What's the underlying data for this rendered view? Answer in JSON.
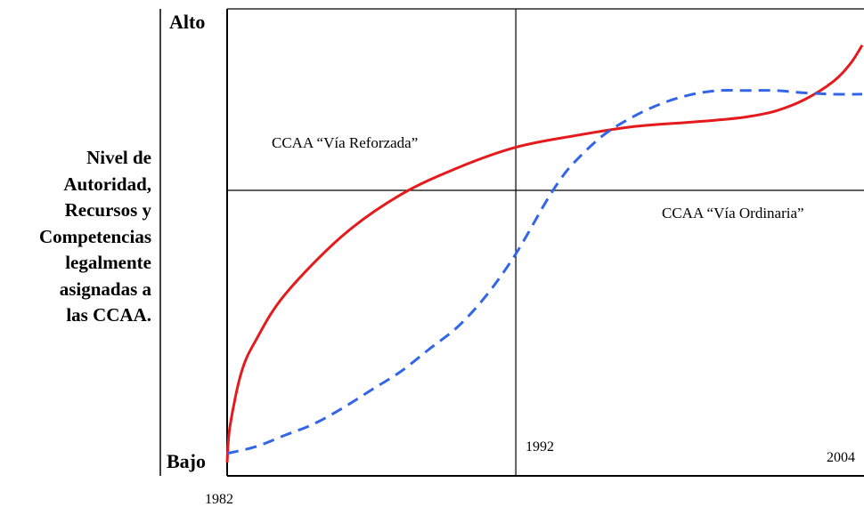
{
  "chart_data": {
    "type": "line",
    "ylabel_lines": [
      "Nivel de",
      "Autoridad,",
      "Recursos y",
      "Competencias",
      "legalmente",
      "asignadas a",
      "las CCAA."
    ],
    "y_ticks": {
      "top": "Alto",
      "bottom": "Bajo"
    },
    "x_ticks": {
      "start": "1982",
      "middle": "1992",
      "end": "2004"
    },
    "x_range": [
      1982,
      2004
    ],
    "y_range": [
      0,
      1
    ],
    "reference_lines": {
      "x": 1992,
      "y": 0.6
    },
    "series": [
      {
        "name": "CCAA “Vía Reforzada”",
        "color": "#e41a1c",
        "style": "solid",
        "points": [
          [
            1982.0,
            0.0
          ],
          [
            1982.1,
            0.08
          ],
          [
            1982.5,
            0.2
          ],
          [
            1983.0,
            0.27
          ],
          [
            1984.0,
            0.37
          ],
          [
            1986.0,
            0.5
          ],
          [
            1988.0,
            0.59
          ],
          [
            1990.0,
            0.65
          ],
          [
            1992.0,
            0.695
          ],
          [
            1994.0,
            0.72
          ],
          [
            1996.0,
            0.74
          ],
          [
            1998.0,
            0.75
          ],
          [
            1999.0,
            0.755
          ],
          [
            2000.0,
            0.762
          ],
          [
            2001.0,
            0.775
          ],
          [
            2002.0,
            0.8
          ],
          [
            2003.0,
            0.84
          ],
          [
            2003.6,
            0.88
          ],
          [
            2004.0,
            0.92
          ]
        ]
      },
      {
        "name": "CCAA “Vía Ordinaria”",
        "color": "#3366e6",
        "style": "dashed",
        "points": [
          [
            1982.0,
            0.02
          ],
          [
            1983.0,
            0.035
          ],
          [
            1984.0,
            0.06
          ],
          [
            1985.0,
            0.085
          ],
          [
            1986.0,
            0.12
          ],
          [
            1987.0,
            0.16
          ],
          [
            1988.0,
            0.2
          ],
          [
            1989.0,
            0.25
          ],
          [
            1990.0,
            0.3
          ],
          [
            1991.0,
            0.37
          ],
          [
            1992.0,
            0.46
          ],
          [
            1993.0,
            0.57
          ],
          [
            1993.5,
            0.62
          ],
          [
            1994.0,
            0.66
          ],
          [
            1995.0,
            0.72
          ],
          [
            1996.0,
            0.76
          ],
          [
            1997.0,
            0.79
          ],
          [
            1998.0,
            0.81
          ],
          [
            1999.0,
            0.82
          ],
          [
            2000.0,
            0.82
          ],
          [
            2001.0,
            0.82
          ],
          [
            2002.0,
            0.815
          ],
          [
            2003.0,
            0.812
          ],
          [
            2004.0,
            0.812
          ]
        ]
      }
    ],
    "grid": false,
    "legend": "none"
  }
}
